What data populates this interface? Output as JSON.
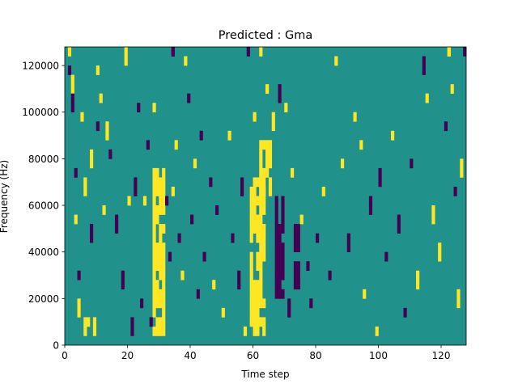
{
  "chart_data": {
    "type": "heatmap",
    "title": "Predicted : Gma",
    "xlabel": "Time step",
    "ylabel": "Frequency (Hz)",
    "xlim": [
      0,
      128
    ],
    "ylim": [
      0,
      128000
    ],
    "x_ticks": [
      0,
      20,
      40,
      60,
      80,
      100,
      120
    ],
    "y_ticks": [
      0,
      20000,
      40000,
      60000,
      80000,
      100000,
      120000
    ],
    "grid": false,
    "legend": "none",
    "colormap": "viridis (three levels shown)",
    "colors": {
      "low": "#440154",
      "mid": "#21918c",
      "high": "#fde725",
      "background": "#21918c"
    },
    "value_levels": {
      "low": -1,
      "mid": 0,
      "high": 1
    },
    "grid_size": {
      "time_steps": 128,
      "frequency_bins": 32
    },
    "high_energy_bands": [
      {
        "time_range": [
          28,
          31
        ],
        "freq_range_hz": [
          4000,
          72000
        ],
        "level": 1
      },
      {
        "time_range": [
          59,
          63
        ],
        "freq_range_hz": [
          4000,
          68000
        ],
        "level": 1
      },
      {
        "time_range": [
          62,
          65
        ],
        "freq_range_hz": [
          64000,
          84000
        ],
        "level": 1
      }
    ],
    "low_energy_bands": [
      {
        "time_range": [
          67,
          69
        ],
        "freq_range_hz": [
          20000,
          60000
        ],
        "level": -1
      },
      {
        "time_range": [
          73,
          74
        ],
        "freq_range_hz": [
          24000,
          48000
        ],
        "level": -1
      }
    ],
    "isolated_cells": [
      {
        "t": 1,
        "f": 124000,
        "v": 1
      },
      {
        "t": 1,
        "f": 116000,
        "v": -1
      },
      {
        "t": 2,
        "f": 108000,
        "v": 1
      },
      {
        "t": 2,
        "f": 100000,
        "v": -1
      },
      {
        "t": 3,
        "f": 52000,
        "v": 1
      },
      {
        "t": 3,
        "f": 72000,
        "v": -1
      },
      {
        "t": 4,
        "f": 12000,
        "v": 1
      },
      {
        "t": 4,
        "f": 28000,
        "v": -1
      },
      {
        "t": 5,
        "f": 96000,
        "v": 1
      },
      {
        "t": 6,
        "f": 64000,
        "v": 1
      },
      {
        "t": 6,
        "f": 4000,
        "v": 1
      },
      {
        "t": 7,
        "f": 8000,
        "v": 1
      },
      {
        "t": 8,
        "f": 76000,
        "v": 1
      },
      {
        "t": 8,
        "f": 44000,
        "v": -1
      },
      {
        "t": 9,
        "f": 4000,
        "v": 1
      },
      {
        "t": 10,
        "f": 116000,
        "v": 1
      },
      {
        "t": 10,
        "f": 92000,
        "v": -1
      },
      {
        "t": 11,
        "f": 104000,
        "v": 1
      },
      {
        "t": 12,
        "f": 56000,
        "v": 1
      },
      {
        "t": 13,
        "f": 88000,
        "v": 1
      },
      {
        "t": 14,
        "f": 80000,
        "v": -1
      },
      {
        "t": 16,
        "f": 48000,
        "v": -1
      },
      {
        "t": 18,
        "f": 24000,
        "v": -1
      },
      {
        "t": 19,
        "f": 120000,
        "v": 1
      },
      {
        "t": 20,
        "f": 60000,
        "v": 1
      },
      {
        "t": 21,
        "f": 4000,
        "v": -1
      },
      {
        "t": 22,
        "f": 64000,
        "v": -1
      },
      {
        "t": 23,
        "f": 100000,
        "v": -1
      },
      {
        "t": 24,
        "f": 16000,
        "v": -1
      },
      {
        "t": 25,
        "f": 60000,
        "v": 1
      },
      {
        "t": 26,
        "f": 84000,
        "v": -1
      },
      {
        "t": 27,
        "f": 8000,
        "v": -1
      },
      {
        "t": 28,
        "f": 100000,
        "v": 1
      },
      {
        "t": 32,
        "f": 60000,
        "v": -1
      },
      {
        "t": 33,
        "f": 36000,
        "v": -1
      },
      {
        "t": 34,
        "f": 64000,
        "v": 1
      },
      {
        "t": 34,
        "f": 124000,
        "v": -1
      },
      {
        "t": 35,
        "f": 84000,
        "v": 1
      },
      {
        "t": 36,
        "f": 44000,
        "v": -1
      },
      {
        "t": 37,
        "f": 28000,
        "v": 1
      },
      {
        "t": 38,
        "f": 120000,
        "v": 1
      },
      {
        "t": 39,
        "f": 104000,
        "v": -1
      },
      {
        "t": 40,
        "f": 52000,
        "v": -1
      },
      {
        "t": 41,
        "f": 76000,
        "v": 1
      },
      {
        "t": 42,
        "f": 20000,
        "v": -1
      },
      {
        "t": 43,
        "f": 88000,
        "v": -1
      },
      {
        "t": 44,
        "f": 36000,
        "v": -1
      },
      {
        "t": 46,
        "f": 68000,
        "v": -1
      },
      {
        "t": 47,
        "f": 24000,
        "v": 1
      },
      {
        "t": 48,
        "f": 56000,
        "v": -1
      },
      {
        "t": 50,
        "f": 12000,
        "v": 1
      },
      {
        "t": 52,
        "f": 88000,
        "v": 1
      },
      {
        "t": 53,
        "f": 44000,
        "v": -1
      },
      {
        "t": 55,
        "f": 24000,
        "v": -1
      },
      {
        "t": 56,
        "f": 64000,
        "v": -1
      },
      {
        "t": 57,
        "f": 4000,
        "v": 1
      },
      {
        "t": 58,
        "f": 124000,
        "v": -1
      },
      {
        "t": 60,
        "f": 96000,
        "v": 1
      },
      {
        "t": 62,
        "f": 124000,
        "v": 1
      },
      {
        "t": 64,
        "f": 108000,
        "v": 1
      },
      {
        "t": 66,
        "f": 92000,
        "v": 1
      },
      {
        "t": 68,
        "f": 104000,
        "v": -1
      },
      {
        "t": 70,
        "f": 100000,
        "v": 1
      },
      {
        "t": 71,
        "f": 12000,
        "v": -1
      },
      {
        "t": 72,
        "f": 72000,
        "v": 1
      },
      {
        "t": 75,
        "f": 52000,
        "v": 1
      },
      {
        "t": 77,
        "f": 32000,
        "v": -1
      },
      {
        "t": 78,
        "f": 16000,
        "v": -1
      },
      {
        "t": 80,
        "f": 44000,
        "v": -1
      },
      {
        "t": 82,
        "f": 64000,
        "v": 1
      },
      {
        "t": 84,
        "f": 28000,
        "v": -1
      },
      {
        "t": 86,
        "f": 120000,
        "v": 1
      },
      {
        "t": 88,
        "f": 76000,
        "v": 1
      },
      {
        "t": 90,
        "f": 40000,
        "v": -1
      },
      {
        "t": 92,
        "f": 96000,
        "v": 1
      },
      {
        "t": 94,
        "f": 84000,
        "v": 1
      },
      {
        "t": 95,
        "f": 20000,
        "v": 1
      },
      {
        "t": 97,
        "f": 56000,
        "v": -1
      },
      {
        "t": 99,
        "f": 4000,
        "v": 1
      },
      {
        "t": 100,
        "f": 68000,
        "v": -1
      },
      {
        "t": 102,
        "f": 36000,
        "v": -1
      },
      {
        "t": 104,
        "f": 88000,
        "v": 1
      },
      {
        "t": 106,
        "f": 48000,
        "v": -1
      },
      {
        "t": 108,
        "f": 12000,
        "v": -1
      },
      {
        "t": 110,
        "f": 76000,
        "v": -1
      },
      {
        "t": 112,
        "f": 24000,
        "v": 1
      },
      {
        "t": 114,
        "f": 116000,
        "v": -1
      },
      {
        "t": 115,
        "f": 104000,
        "v": 1
      },
      {
        "t": 117,
        "f": 52000,
        "v": 1
      },
      {
        "t": 119,
        "f": 36000,
        "v": 1
      },
      {
        "t": 121,
        "f": 92000,
        "v": -1
      },
      {
        "t": 122,
        "f": 124000,
        "v": 1
      },
      {
        "t": 123,
        "f": 108000,
        "v": 1
      },
      {
        "t": 124,
        "f": 64000,
        "v": -1
      },
      {
        "t": 125,
        "f": 16000,
        "v": 1
      },
      {
        "t": 126,
        "f": 72000,
        "v": 1
      },
      {
        "t": 127,
        "f": 124000,
        "v": -1
      }
    ]
  }
}
